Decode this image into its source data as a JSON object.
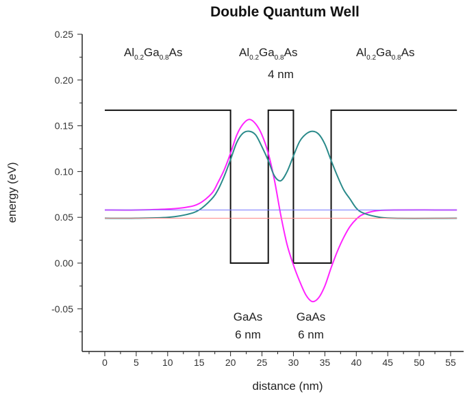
{
  "chart_data": {
    "type": "line",
    "title": "Double Quantum Well",
    "xlabel": "distance (nm)",
    "ylabel": "energy (eV)",
    "xlim": [
      -3,
      57
    ],
    "ylim": [
      -0.09,
      0.25
    ],
    "x_ticks": [
      "0",
      "5",
      "10",
      "15",
      "20",
      "25",
      "30",
      "35",
      "40",
      "45",
      "50",
      "55"
    ],
    "y_ticks": [
      "-0.05",
      "0.00",
      "0.05",
      "0.10",
      "0.15",
      "0.20",
      "0.25"
    ],
    "grid": false,
    "series": [
      {
        "name": "",
        "color": "#111111",
        "points": [
          [
            0,
            0.167
          ],
          [
            20,
            0.167
          ],
          [
            20,
            0
          ],
          [
            26,
            0
          ],
          [
            26,
            0.167
          ],
          [
            30,
            0.167
          ],
          [
            30,
            0
          ],
          [
            36,
            0
          ],
          [
            36,
            0.167
          ],
          [
            56,
            0.167
          ]
        ]
      },
      {
        "name": "",
        "color": "#ff22ff",
        "points": [
          [
            0,
            0.058
          ],
          [
            5,
            0.058
          ],
          [
            10,
            0.059
          ],
          [
            13,
            0.061
          ],
          [
            15,
            0.065
          ],
          [
            17,
            0.076
          ],
          [
            18,
            0.088
          ],
          [
            19,
            0.102
          ],
          [
            20,
            0.12
          ],
          [
            21,
            0.14
          ],
          [
            22,
            0.152
          ],
          [
            23,
            0.157
          ],
          [
            24,
            0.152
          ],
          [
            25,
            0.14
          ],
          [
            26,
            0.12
          ],
          [
            27,
            0.09
          ],
          [
            28,
            0.052
          ],
          [
            29,
            0.02
          ],
          [
            30,
            -0.002
          ],
          [
            31,
            -0.02
          ],
          [
            32,
            -0.035
          ],
          [
            33,
            -0.042
          ],
          [
            34,
            -0.038
          ],
          [
            35,
            -0.025
          ],
          [
            36,
            -0.005
          ],
          [
            37,
            0.013
          ],
          [
            38,
            0.028
          ],
          [
            39,
            0.04
          ],
          [
            40,
            0.048
          ],
          [
            41,
            0.053
          ],
          [
            43,
            0.057
          ],
          [
            46,
            0.058
          ],
          [
            56,
            0.058
          ]
        ]
      },
      {
        "name": "",
        "color": "#2a8a8a",
        "points": [
          [
            0,
            0.049
          ],
          [
            5,
            0.049
          ],
          [
            10,
            0.05
          ],
          [
            13,
            0.053
          ],
          [
            15,
            0.058
          ],
          [
            17,
            0.07
          ],
          [
            18,
            0.08
          ],
          [
            19,
            0.095
          ],
          [
            20,
            0.113
          ],
          [
            21,
            0.132
          ],
          [
            22,
            0.142
          ],
          [
            23,
            0.144
          ],
          [
            24,
            0.14
          ],
          [
            25,
            0.127
          ],
          [
            26,
            0.112
          ],
          [
            27,
            0.095
          ],
          [
            28,
            0.09
          ],
          [
            29,
            0.1
          ],
          [
            30,
            0.117
          ],
          [
            31,
            0.133
          ],
          [
            32,
            0.141
          ],
          [
            33,
            0.144
          ],
          [
            34,
            0.141
          ],
          [
            35,
            0.13
          ],
          [
            36,
            0.112
          ],
          [
            37,
            0.095
          ],
          [
            38,
            0.08
          ],
          [
            39,
            0.07
          ],
          [
            40,
            0.06
          ],
          [
            41,
            0.055
          ],
          [
            43,
            0.051
          ],
          [
            46,
            0.049
          ],
          [
            56,
            0.049
          ]
        ]
      },
      {
        "name": "",
        "color": "#7777ff",
        "points": [
          [
            0,
            0.058
          ],
          [
            56,
            0.058
          ]
        ]
      },
      {
        "name": "",
        "color": "#ff8888",
        "points": [
          [
            0,
            0.049
          ],
          [
            56,
            0.049
          ]
        ]
      }
    ],
    "annotations": {
      "alg_left": {
        "pre": "Al",
        "s1": "0.2",
        "mid": "Ga",
        "s2": "0.8",
        "post": "As"
      },
      "alg_center": {
        "pre": "Al",
        "s1": "0.2",
        "mid": "Ga",
        "s2": "0.8",
        "post": "As"
      },
      "alg_right": {
        "pre": "Al",
        "s1": "0.2",
        "mid": "Ga",
        "s2": "0.8",
        "post": "As"
      },
      "barrier_width": "4 nm",
      "well1_material": "GaAs",
      "well1_width": "6 nm",
      "well2_material": "GaAs",
      "well2_width": "6 nm"
    }
  }
}
